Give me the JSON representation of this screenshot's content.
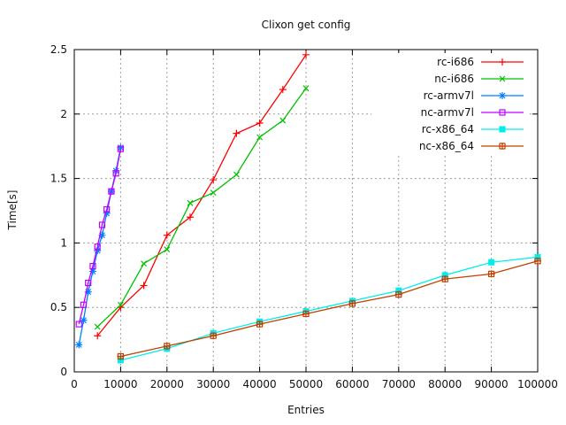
{
  "chart_data": {
    "type": "line",
    "title": "Clixon get config",
    "xlabel": "Entries",
    "ylabel": "Time[s]",
    "xlim": [
      0,
      100000
    ],
    "ylim": [
      0,
      2.5
    ],
    "x_ticks": [
      0,
      10000,
      20000,
      30000,
      40000,
      50000,
      60000,
      70000,
      80000,
      90000,
      100000
    ],
    "y_ticks": [
      0,
      0.5,
      1,
      1.5,
      2,
      2.5
    ],
    "grid": true,
    "legend_position": "top-right-inside",
    "background": "#ffffff",
    "grid_color": "#9e9e9e",
    "border_color": "#000000",
    "series": [
      {
        "name": "rc-i686",
        "color": "#ff0000",
        "marker": "plus",
        "x": [
          5000,
          10000,
          15000,
          20000,
          25000,
          30000,
          35000,
          40000,
          45000,
          50000
        ],
        "y": [
          0.28,
          0.5,
          0.67,
          1.06,
          1.2,
          1.49,
          1.85,
          1.93,
          2.19,
          2.46
        ]
      },
      {
        "name": "nc-i686",
        "color": "#00c000",
        "marker": "cross",
        "x": [
          5000,
          10000,
          15000,
          20000,
          25000,
          30000,
          35000,
          40000,
          45000,
          50000
        ],
        "y": [
          0.35,
          0.52,
          0.84,
          0.95,
          1.31,
          1.39,
          1.53,
          1.82,
          1.95,
          2.2
        ]
      },
      {
        "name": "rc-armv7l",
        "color": "#0080ff",
        "marker": "asterisk",
        "x": [
          1000,
          2000,
          3000,
          4000,
          5000,
          6000,
          7000,
          8000,
          9000,
          10000
        ],
        "y": [
          0.21,
          0.4,
          0.62,
          0.78,
          0.94,
          1.06,
          1.23,
          1.4,
          1.56,
          1.74
        ]
      },
      {
        "name": "nc-armv7l",
        "color": "#c000ff",
        "marker": "open-square",
        "x": [
          1000,
          2000,
          3000,
          4000,
          5000,
          6000,
          7000,
          8000,
          9000,
          10000
        ],
        "y": [
          0.37,
          0.52,
          0.69,
          0.82,
          0.97,
          1.14,
          1.26,
          1.4,
          1.54,
          1.73
        ]
      },
      {
        "name": "rc-x86_64",
        "color": "#00eeee",
        "marker": "filled-square",
        "x": [
          10000,
          20000,
          30000,
          40000,
          50000,
          60000,
          70000,
          80000,
          90000,
          100000
        ],
        "y": [
          0.09,
          0.18,
          0.3,
          0.39,
          0.47,
          0.55,
          0.63,
          0.75,
          0.85,
          0.89
        ]
      },
      {
        "name": "nc-x86_64",
        "color": "#c04000",
        "marker": "boxed-plus",
        "x": [
          10000,
          20000,
          30000,
          40000,
          50000,
          60000,
          70000,
          80000,
          90000,
          100000
        ],
        "y": [
          0.12,
          0.2,
          0.28,
          0.37,
          0.45,
          0.53,
          0.6,
          0.72,
          0.76,
          0.86
        ]
      }
    ]
  }
}
